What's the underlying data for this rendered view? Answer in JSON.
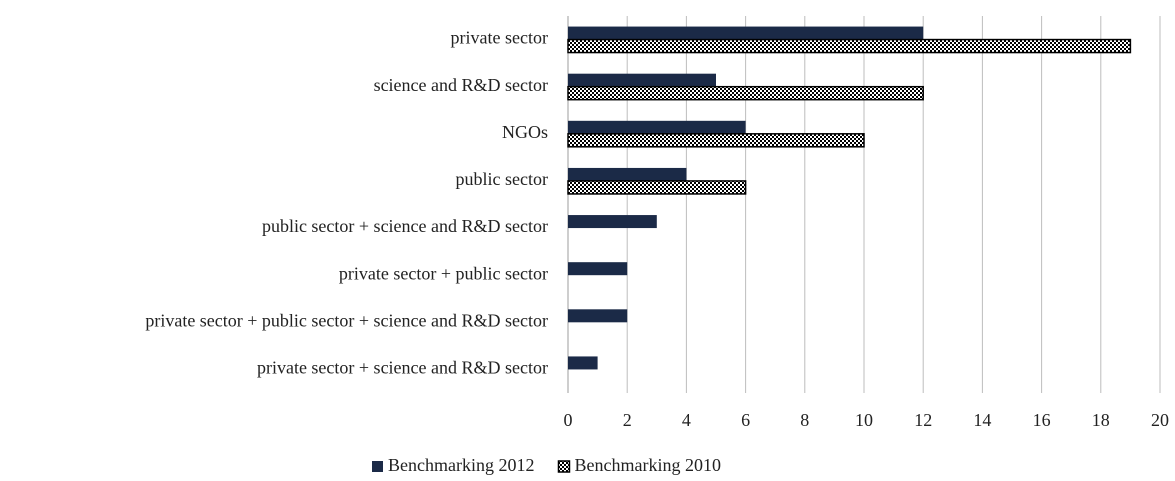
{
  "chart_data": {
    "type": "hbar",
    "categories": [
      "private sector",
      "science and R&D sector",
      "NGOs",
      "public sector",
      "public sector + science and R&D sector",
      "private sector + public sector",
      "private sector + public sector + science and R&D sector",
      "private sector + science and R&D sector"
    ],
    "series": [
      {
        "name": "Benchmarking 2012",
        "color": "#1b2a47",
        "values": [
          12,
          5,
          6,
          4,
          3,
          2,
          2,
          1
        ]
      },
      {
        "name": "Benchmarking 2010",
        "color": "#000000",
        "pattern": "checker",
        "values": [
          19,
          12,
          10,
          6,
          null,
          null,
          null,
          null
        ]
      }
    ],
    "xlim": [
      0,
      20
    ],
    "xticks": [
      0,
      2,
      4,
      6,
      8,
      10,
      12,
      14,
      16,
      18,
      20
    ],
    "grid": true,
    "legend": "bottom"
  }
}
